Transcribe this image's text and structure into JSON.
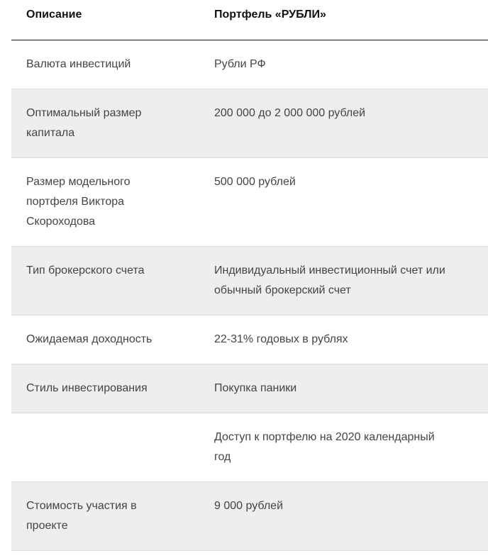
{
  "header": {
    "col1": "Описание",
    "col2": "Портфель «РУБЛИ»"
  },
  "rows": [
    {
      "label": "Валюта инвестиций",
      "value": "Рубли РФ"
    },
    {
      "label": "Оптимальный размер\nкапитала",
      "value": "200 000 до 2 000 000 рублей"
    },
    {
      "label": "Размер модельного\nпортфеля Виктора\nСкороходова",
      "value": "500 000 рублей"
    },
    {
      "label": "Тип брокерского счета",
      "value": "Индивидуальный инвестиционный счет или\nобычный брокерский счет"
    },
    {
      "label": "Ожидаемая доходность",
      "value": "22-31% годовых в рублях"
    },
    {
      "label": "Стиль инвестирования",
      "value": "Покупка паники"
    },
    {
      "label": "",
      "value": "Доступ к портфелю на 2020 календарный\nгод"
    },
    {
      "label": "Стоимость участия в\nпроекте",
      "value": "9 000 рублей"
    }
  ]
}
